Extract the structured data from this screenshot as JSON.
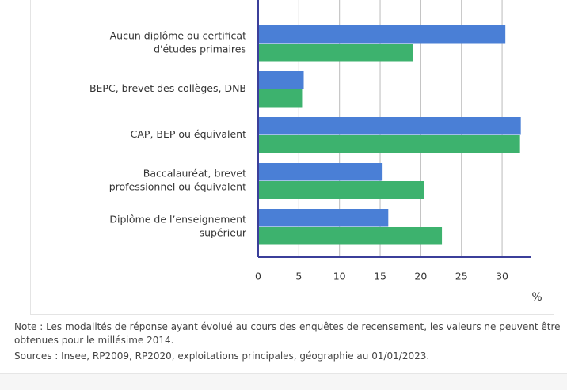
{
  "chart_data": {
    "type": "hbar",
    "categories": [
      [
        "Aucun diplôme ou certificat",
        "d'études primaires"
      ],
      [
        "BEPC, brevet des collèges, DNB"
      ],
      [
        "CAP, BEP ou équivalent"
      ],
      [
        "Baccalauréat, brevet",
        "professionnel ou équivalent"
      ],
      [
        "Diplôme de l’enseignement",
        "supérieur"
      ]
    ],
    "series": [
      {
        "color": "#4a7fd6",
        "values": [
          30.4,
          5.6,
          32.3,
          15.3,
          16.0
        ]
      },
      {
        "color": "#3db26e",
        "values": [
          19.0,
          5.4,
          32.2,
          20.4,
          22.6
        ]
      }
    ],
    "xlim": [
      0,
      33.5
    ],
    "xticks": [
      0,
      5,
      10,
      15,
      20,
      25,
      30
    ],
    "grid": true,
    "xlabel": "%"
  },
  "notes": [
    "Note : Les modalités de réponse ayant évolué au cours des enquêtes de recensement, les valeurs ne peuvent être obtenues pour le millésime 2014.",
    "Sources : Insee, RP2009, RP2020, exploitations principales, géographie au 01/01/2023."
  ]
}
